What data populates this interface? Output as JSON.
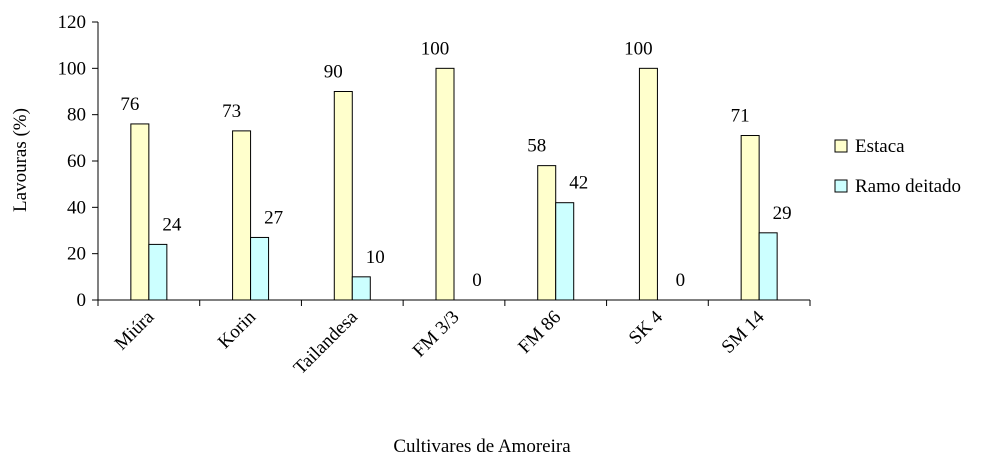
{
  "chart_data": {
    "type": "bar",
    "title": "",
    "xlabel": "Cultivares de Amoreira",
    "ylabel": "Lavouras (%)",
    "ylim": [
      0,
      120
    ],
    "yticks": [
      "0",
      "20",
      "40",
      "60",
      "80",
      "100",
      "120"
    ],
    "grid": false,
    "legend_position": "right",
    "categories": [
      "Miúra",
      "Korin",
      "Tailandesa",
      "FM 3/3",
      "FM 86",
      "SK 4",
      "SM 14"
    ],
    "series": [
      {
        "name": "Estaca",
        "color": "#FFFFCC",
        "values": [
          76,
          73,
          90,
          100,
          58,
          100,
          71
        ]
      },
      {
        "name": "Ramo deitado",
        "color": "#CCFFFF",
        "values": [
          24,
          27,
          10,
          0,
          42,
          0,
          29
        ]
      }
    ]
  }
}
